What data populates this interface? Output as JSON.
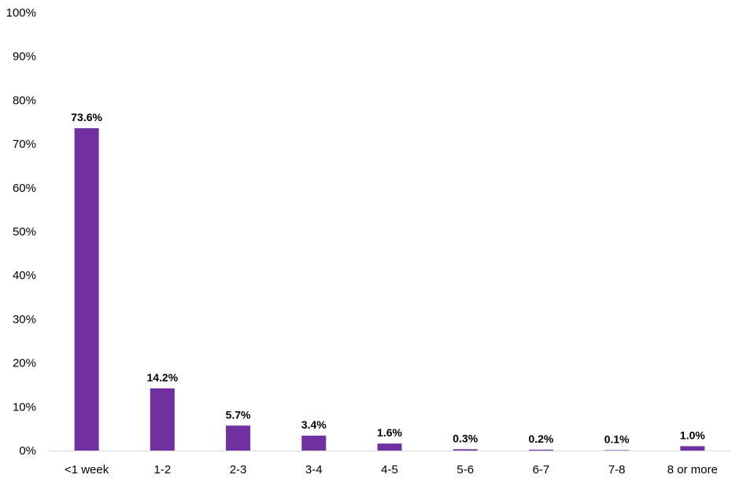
{
  "chart_data": {
    "type": "bar",
    "categories": [
      "<1 week",
      "1-2",
      "2-3",
      "3-4",
      "4-5",
      "5-6",
      "6-7",
      "7-8",
      "8 or more"
    ],
    "values": [
      73.6,
      14.2,
      5.7,
      3.4,
      1.6,
      0.3,
      0.2,
      0.1,
      1.0
    ],
    "data_labels": [
      "73.6%",
      "14.2%",
      "5.7%",
      "3.4%",
      "1.6%",
      "0.3%",
      "0.2%",
      "0.1%",
      "1.0%"
    ],
    "y_ticks": [
      0,
      10,
      20,
      30,
      40,
      50,
      60,
      70,
      80,
      90,
      100
    ],
    "y_tick_labels": [
      "0%",
      "10%",
      "20%",
      "30%",
      "40%",
      "50%",
      "60%",
      "70%",
      "80%",
      "90%",
      "100%"
    ],
    "ylim": [
      0,
      100
    ],
    "title": "",
    "xlabel": "",
    "ylabel": "",
    "grid": false,
    "legend": false,
    "colors": {
      "bar": "#7030a0",
      "axis": "#d9d9d9",
      "text": "#000000"
    }
  }
}
